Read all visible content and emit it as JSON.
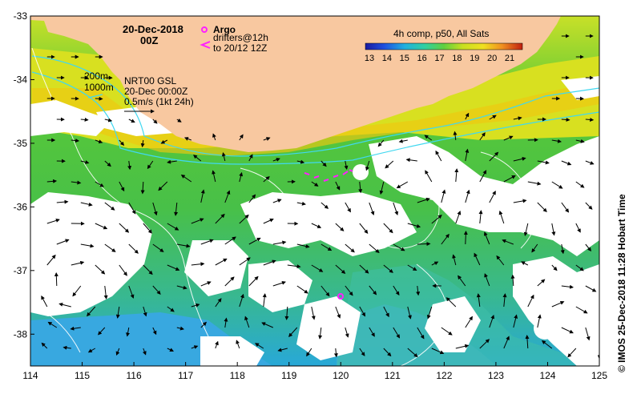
{
  "map": {
    "date": "20-Dec-2018",
    "time": "00Z",
    "argo_label": "Argo",
    "drifters_line1": "drifters@12h",
    "drifters_line2": "to 20/12 12Z",
    "isobath_200": "200m",
    "isobath_1000": "1000m",
    "gsl_line1": "NRT00 GSL",
    "gsl_line2": "20-Dec 00:00Z",
    "vector_scale": "0.5m/s (1kt 24h)",
    "colorbar_title": "4h comp, p50, All Sats",
    "colorbar_ticks": [
      "13",
      "14",
      "15",
      "16",
      "17",
      "18",
      "19",
      "20",
      "21"
    ],
    "credit": "© IMOS 25-Dec-2018 11:28 Hobart Time",
    "x_ticks": [
      "114",
      "115",
      "116",
      "117",
      "118",
      "119",
      "120",
      "121",
      "122",
      "123",
      "124",
      "125"
    ],
    "y_ticks": [
      "-33",
      "-34",
      "-35",
      "-36",
      "-37",
      "-38"
    ],
    "colors": {
      "land": "#f8c8a0",
      "cloud": "#ffffff",
      "isobath": "#40d8f0",
      "contour": "#ffffff",
      "argo": "#ff20ff",
      "warm_shelf": "#f0c800",
      "cold_water": "#20a8e8"
    },
    "extent": {
      "lon": [
        114,
        125
      ],
      "lat": [
        -38.5,
        -33
      ]
    }
  }
}
